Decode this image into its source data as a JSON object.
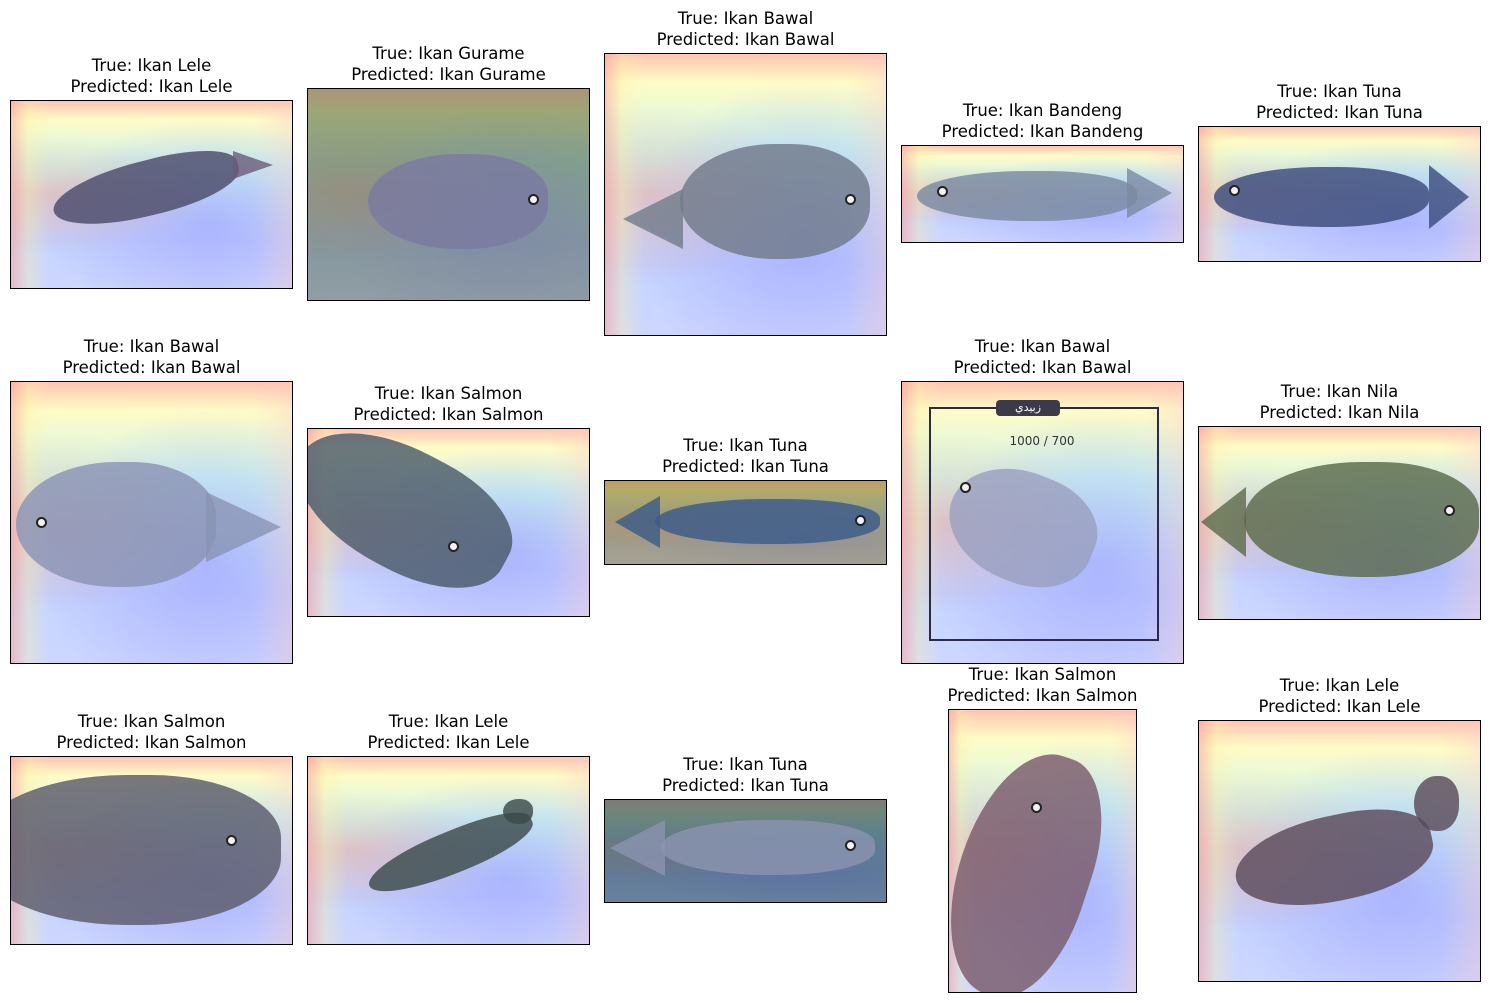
{
  "panels": [
    {
      "true_label": "True: Ikan Lele",
      "pred_label": "Predicted: Ikan Lele",
      "fish_color": "#4a4a6a"
    },
    {
      "true_label": "True: Ikan Gurame",
      "pred_label": "Predicted: Ikan Gurame",
      "fish_color": "#6a6a8a"
    },
    {
      "true_label": "True: Ikan Bawal",
      "pred_label": "Predicted: Ikan Bawal",
      "fish_color": "#707a8a"
    },
    {
      "true_label": "True: Ikan Bandeng",
      "pred_label": "Predicted: Ikan Bandeng",
      "fish_color": "#7a8aa0"
    },
    {
      "true_label": "True: Ikan Tuna",
      "pred_label": "Predicted: Ikan Tuna",
      "fish_color": "#3a4a7a"
    },
    {
      "true_label": "True: Ikan Bawal",
      "pred_label": "Predicted: Ikan Bawal",
      "fish_color": "#8a94b4"
    },
    {
      "true_label": "True: Ikan Salmon",
      "pred_label": "Predicted: Ikan Salmon",
      "fish_color": "#4a5a6a"
    },
    {
      "true_label": "True: Ikan Tuna",
      "pred_label": "Predicted: Ikan Tuna",
      "fish_color": "#3a5a8a"
    },
    {
      "true_label": "True: Ikan Bawal",
      "pred_label": "Predicted: Ikan Bawal",
      "fish_color": "#9aa0c0",
      "sign_text": "زبيدي",
      "weight_text": "1000 / 700"
    },
    {
      "true_label": "True: Ikan Nila",
      "pred_label": "Predicted: Ikan Nila",
      "fish_color": "#5a6a4a"
    },
    {
      "true_label": "True: Ikan Salmon",
      "pred_label": "Predicted: Ikan Salmon",
      "fish_color": "#5a5a6a"
    },
    {
      "true_label": "True: Ikan Lele",
      "pred_label": "Predicted: Ikan Lele",
      "fish_color": "#3a4a4a"
    },
    {
      "true_label": "True: Ikan Tuna",
      "pred_label": "Predicted: Ikan Tuna",
      "fish_color": "#4a5a8a"
    },
    {
      "true_label": "True: Ikan Salmon",
      "pred_label": "Predicted: Ikan Salmon",
      "fish_color": "#7a5a6a"
    },
    {
      "true_label": "True: Ikan Lele",
      "pred_label": "Predicted: Ikan Lele",
      "fish_color": "#5a4a5a"
    }
  ]
}
